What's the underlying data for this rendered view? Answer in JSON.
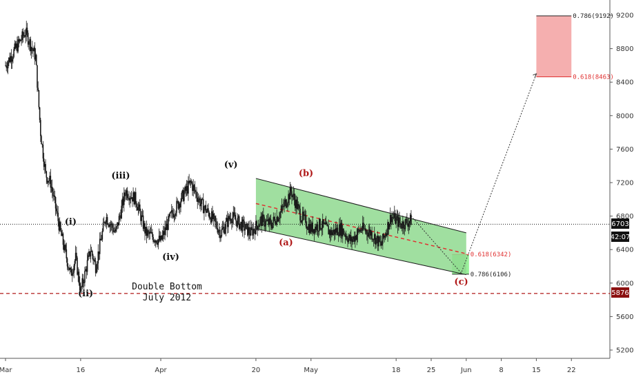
{
  "colors": {
    "candle": "#1a1a1a",
    "channel_fill": "#8fd98f",
    "channel_line": "#1a1a1a",
    "target_zone_fill": "#f4a6a6",
    "target_zone_line": "#e03030",
    "support_zone_fill": "#9af09a",
    "midline": "#e03030",
    "wave_red": "#b01818",
    "wave_black": "#111111",
    "price_tag": "#111111",
    "level_tag": "#8b1010"
  },
  "chart_data": {
    "type": "candlestick",
    "title": "",
    "x_ticks": [
      "Mar",
      "16",
      "Apr",
      "20",
      "May",
      "18",
      "25",
      "Jun",
      "8",
      "15",
      "22"
    ],
    "x_tick_dates": [
      "2018-03-01",
      "2018-03-16",
      "2018-04-01",
      "2018-04-20",
      "2018-05-01",
      "2018-05-18",
      "2018-05-25",
      "2018-06-01",
      "2018-06-08",
      "2018-06-15",
      "2018-06-22"
    ],
    "y_ticks": [
      5200,
      5600,
      6000,
      6400,
      6800,
      7200,
      7600,
      8000,
      8400,
      8800,
      9200
    ],
    "ylim": [
      5000,
      9300
    ],
    "close_series": {
      "dates": [
        "2018-03-01",
        "2018-03-03",
        "2018-03-05",
        "2018-03-07",
        "2018-03-08",
        "2018-03-09",
        "2018-03-10",
        "2018-03-12",
        "2018-03-14",
        "2018-03-15",
        "2018-03-16",
        "2018-03-18",
        "2018-03-19",
        "2018-03-21",
        "2018-03-23",
        "2018-03-25",
        "2018-03-27",
        "2018-03-29",
        "2018-04-01",
        "2018-04-03",
        "2018-04-05",
        "2018-04-07",
        "2018-04-09",
        "2018-04-11",
        "2018-04-13",
        "2018-04-15",
        "2018-04-17",
        "2018-04-19",
        "2018-04-21",
        "2018-04-23",
        "2018-04-25",
        "2018-04-27",
        "2018-04-29",
        "2018-05-01",
        "2018-05-03",
        "2018-05-05",
        "2018-05-07",
        "2018-05-09",
        "2018-05-11",
        "2018-05-13",
        "2018-05-15",
        "2018-05-17",
        "2018-05-19",
        "2018-05-21"
      ],
      "close": [
        8600,
        8800,
        9000,
        8700,
        7800,
        7300,
        7200,
        6600,
        6100,
        6300,
        5900,
        6400,
        6200,
        6800,
        6600,
        7100,
        7000,
        6600,
        6500,
        6800,
        7000,
        7200,
        6950,
        6800,
        6600,
        6800,
        6700,
        6600,
        6750,
        6700,
        6850,
        7100,
        6800,
        6650,
        6700,
        6600,
        6650,
        6500,
        6650,
        6600,
        6450,
        6800,
        6700,
        6750
      ]
    },
    "channel": {
      "upper": {
        "from": [
          "2018-04-20",
          7250
        ],
        "to": [
          "2018-06-01",
          6600
        ]
      },
      "lower": {
        "from": [
          "2018-04-20",
          6650
        ],
        "to": [
          "2018-06-01",
          6100
        ]
      },
      "midline": {
        "from": [
          "2018-04-20",
          6950
        ],
        "to": [
          "2018-06-01",
          6350
        ]
      }
    },
    "projection_path": [
      [
        "2018-05-21",
        6800
      ],
      [
        "2018-05-31",
        6120
      ],
      [
        "2018-06-15",
        8500
      ]
    ],
    "zones": {
      "target": {
        "from": "2018-06-15",
        "to": "2018-06-22",
        "low": 8463,
        "high": 9192,
        "low_label": "0.618(8463)",
        "high_label": "0.786(9192)"
      },
      "support": {
        "from": "2018-05-30",
        "to": "2018-06-01",
        "low": 6106,
        "high": 6342,
        "low_label": "0.786(6106)",
        "high_label": "0.618(6342)"
      }
    },
    "reference_lines": {
      "current_price": 6703,
      "support_level": 5876
    },
    "wave_labels": [
      {
        "text": "(i)",
        "date": "2018-03-14",
        "price": 6700,
        "color": "black"
      },
      {
        "text": "(ii)",
        "date": "2018-03-17",
        "price": 5840,
        "color": "black"
      },
      {
        "text": "(iii)",
        "date": "2018-03-24",
        "price": 7250,
        "color": "black"
      },
      {
        "text": "(iv)",
        "date": "2018-04-03",
        "price": 6280,
        "color": "black"
      },
      {
        "text": "(v)",
        "date": "2018-04-15",
        "price": 7380,
        "color": "black"
      },
      {
        "text": "(a)",
        "date": "2018-04-26",
        "price": 6450,
        "color": "red"
      },
      {
        "text": "(b)",
        "date": "2018-04-30",
        "price": 7280,
        "color": "red"
      },
      {
        "text": "(c)",
        "date": "2018-05-31",
        "price": 5980,
        "color": "red"
      }
    ],
    "annotation": [
      "Double Bottom",
      "July 2012"
    ]
  },
  "price_axis": {
    "current_price_tag": "6703",
    "countdown_tag": "42:07",
    "support_tag": "5876"
  }
}
